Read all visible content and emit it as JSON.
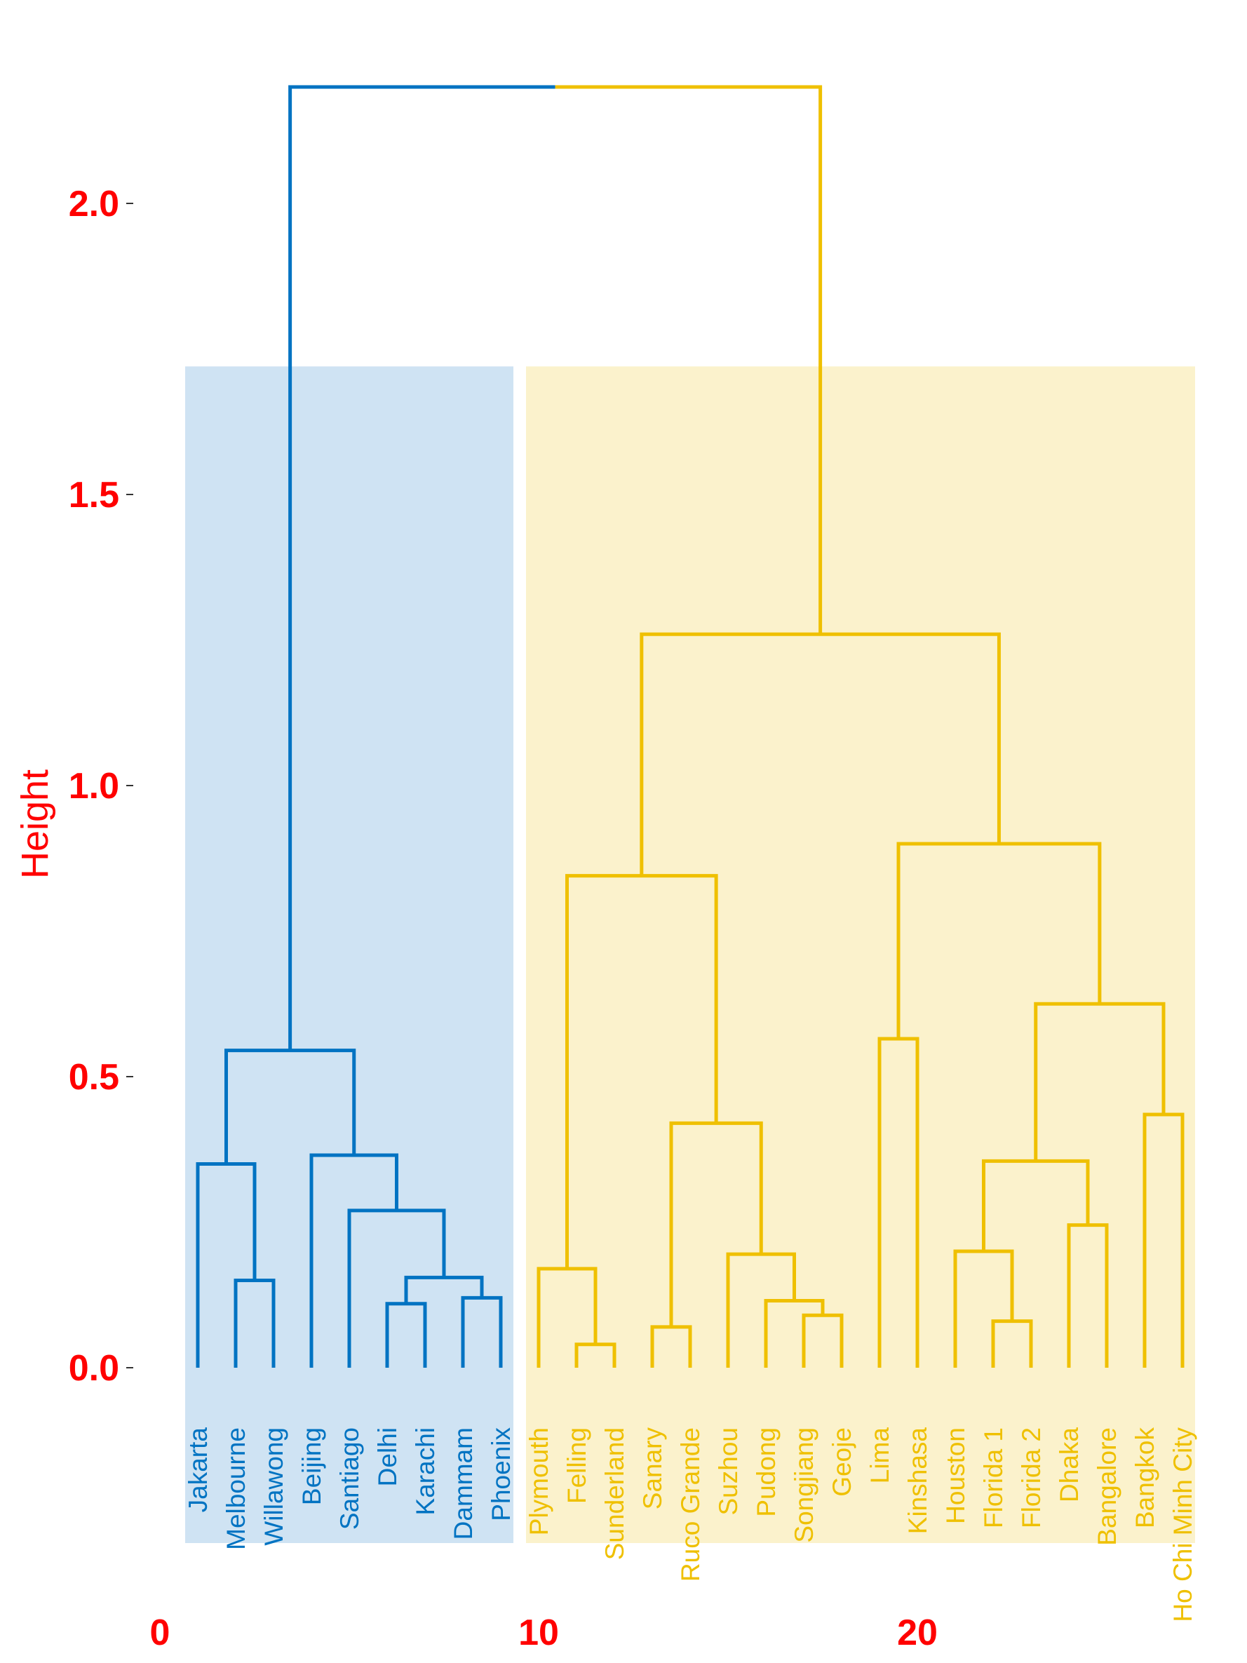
{
  "chart_data": {
    "type": "dendrogram",
    "ylabel": "Height",
    "ylim": [
      0,
      2.2
    ],
    "y_ticks": [
      "0.0",
      "0.5",
      "1.0",
      "1.5",
      "2.0"
    ],
    "x_ticks": [
      "0",
      "10",
      "20"
    ],
    "colors": {
      "axis_text": "#ff0000",
      "cluster_1": "#0073c2",
      "cluster_2": "#efc000",
      "cluster_1_fill": "#cfe3f3",
      "cluster_2_fill": "#fbf2cc"
    },
    "clusters": [
      {
        "color": "cluster_1",
        "leaves": [
          "Jakarta",
          "Melbourne",
          "Willawong",
          "Beijing",
          "Santiago",
          "Delhi",
          "Karachi",
          "Dammam",
          "Phoenix"
        ]
      },
      {
        "color": "cluster_2",
        "leaves": [
          "Plymouth",
          "Felling",
          "Sunderland",
          "Sanary",
          "Ruco Grande",
          "Suzhou",
          "Pudong",
          "Songjiang",
          "Geoje",
          "Lima",
          "Kinshasa",
          "Houston",
          "Florida 1",
          "Florida 2",
          "Dhaka",
          "Bangalore",
          "Bangkok",
          "Ho Chi Minh City"
        ]
      }
    ],
    "leaves": [
      "Jakarta",
      "Melbourne",
      "Willawong",
      "Beijing",
      "Santiago",
      "Delhi",
      "Karachi",
      "Dammam",
      "Phoenix",
      "Plymouth",
      "Felling",
      "Sunderland",
      "Sanary",
      "Ruco Grande",
      "Suzhou",
      "Pudong",
      "Songjiang",
      "Geoje",
      "Lima",
      "Kinshasa",
      "Houston",
      "Florida 1",
      "Florida 2",
      "Dhaka",
      "Bangalore",
      "Bangkok",
      "Ho Chi Minh City"
    ],
    "merges": [
      {
        "a": "Melbourne",
        "b": "Willawong",
        "height": 0.15
      },
      {
        "a": "Jakarta",
        "b": 0,
        "height": 0.35
      },
      {
        "a": "Delhi",
        "b": "Karachi",
        "height": 0.11
      },
      {
        "a": "Dammam",
        "b": "Phoenix",
        "height": 0.12
      },
      {
        "a": 2,
        "b": 3,
        "height": 0.155
      },
      {
        "a": "Santiago",
        "b": 4,
        "height": 0.27
      },
      {
        "a": "Beijing",
        "b": 5,
        "height": 0.365
      },
      {
        "a": 1,
        "b": 6,
        "height": 0.545
      },
      {
        "a": "Felling",
        "b": "Sunderland",
        "height": 0.04
      },
      {
        "a": "Plymouth",
        "b": 8,
        "height": 0.17
      },
      {
        "a": "Sanary",
        "b": "Ruco Grande",
        "height": 0.07
      },
      {
        "a": "Songjiang",
        "b": "Geoje",
        "height": 0.09
      },
      {
        "a": "Pudong",
        "b": 11,
        "height": 0.115
      },
      {
        "a": "Suzhou",
        "b": 12,
        "height": 0.195
      },
      {
        "a": 10,
        "b": 13,
        "height": 0.42
      },
      {
        "a": 9,
        "b": 14,
        "height": 0.845
      },
      {
        "a": "Lima",
        "b": "Kinshasa",
        "height": 0.565
      },
      {
        "a": "Florida 1",
        "b": "Florida 2",
        "height": 0.08
      },
      {
        "a": "Houston",
        "b": 17,
        "height": 0.2
      },
      {
        "a": "Dhaka",
        "b": "Bangalore",
        "height": 0.245
      },
      {
        "a": 18,
        "b": 19,
        "height": 0.355
      },
      {
        "a": "Bangkok",
        "b": "Ho Chi Minh City",
        "height": 0.435
      },
      {
        "a": 20,
        "b": 21,
        "height": 0.625
      },
      {
        "a": 16,
        "b": 22,
        "height": 0.9
      },
      {
        "a": 15,
        "b": 23,
        "height": 1.26
      },
      {
        "a": 7,
        "b": 24,
        "height": 2.2
      }
    ],
    "rect_top": 1.72
  }
}
